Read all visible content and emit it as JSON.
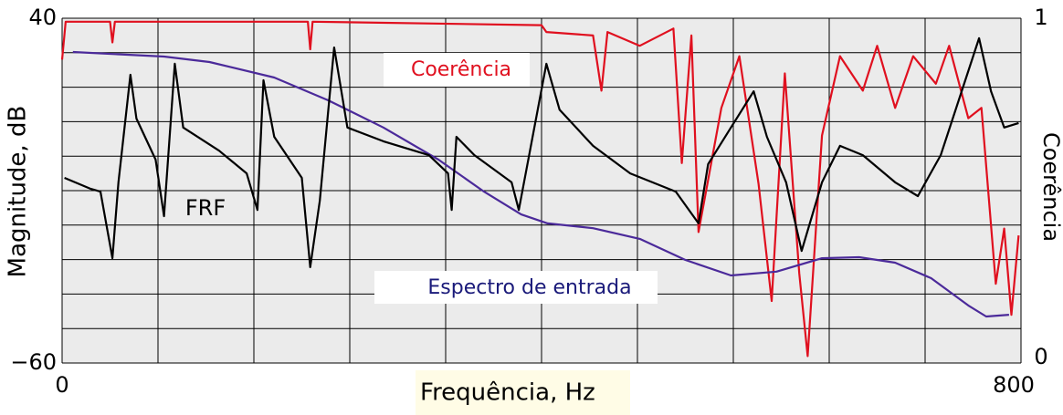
{
  "chart_data": {
    "type": "line",
    "xlabel": "Frequência, Hz",
    "ylabel": "Magnitude, dB",
    "y2label": "Coerência",
    "xlim": [
      0,
      800
    ],
    "ylim": [
      -60,
      40
    ],
    "y2lim": [
      0,
      1
    ],
    "xticks": [
      0,
      800
    ],
    "yticks": [
      40,
      {
        "value": -60,
        "label": "−60"
      }
    ],
    "y2ticks": [
      1,
      0
    ],
    "xgrid": [
      0,
      80,
      160,
      240,
      320,
      400,
      480,
      560,
      640,
      720,
      800
    ],
    "ygrid": [
      -60,
      -50,
      -40,
      -30,
      -20,
      -10,
      0,
      10,
      20,
      30,
      40
    ],
    "grid": true,
    "series": [
      {
        "name": "FRF",
        "color": "#000000",
        "x": [
          2,
          24,
          32,
          42,
          47,
          57,
          62,
          78,
          85,
          94,
          101,
          131,
          154,
          163,
          168,
          177,
          200,
          207,
          215,
          227,
          238,
          268,
          306,
          322,
          325,
          329,
          344,
          375,
          381,
          404,
          415,
          443,
          474,
          512,
          531,
          539,
          558,
          577,
          588,
          604,
          617,
          634,
          649,
          668,
          695,
          714,
          733,
          748,
          765,
          775,
          786,
          798
        ],
        "values": [
          -6.3,
          -9.5,
          -10.3,
          -29.6,
          -7.6,
          23.6,
          10.9,
          -1,
          -17.4,
          26.8,
          8.3,
          1.6,
          -5,
          -15.6,
          22,
          5.6,
          -6.3,
          -32.2,
          -12.9,
          31.5,
          8.3,
          4.3,
          0.3,
          -5,
          -15.6,
          5.6,
          0.3,
          -7.6,
          -15.6,
          26.8,
          13.5,
          3,
          -5,
          -10.3,
          -19.5,
          -2.3,
          8.3,
          18.8,
          5.6,
          -7.6,
          -27.5,
          -7.6,
          3,
          0.3,
          -7.6,
          -11.6,
          0.3,
          16.2,
          34.2,
          18.8,
          8.3,
          9.6
        ]
      },
      {
        "name": "Coerência",
        "color": "#e0101f",
        "axis": "y2",
        "x": [
          0,
          3,
          40,
          42,
          44,
          205,
          207,
          209,
          400,
          404,
          443,
          450,
          455,
          482,
          510,
          517,
          525,
          531,
          550,
          565,
          581,
          592,
          603,
          615,
          622,
          634,
          649,
          668,
          680,
          695,
          710,
          729,
          740,
          756,
          767,
          779,
          786,
          792,
          798
        ],
        "values": [
          0.88,
          0.99,
          0.99,
          0.93,
          0.99,
          0.99,
          0.91,
          0.99,
          0.98,
          0.96,
          0.95,
          0.79,
          0.96,
          0.92,
          0.97,
          0.58,
          0.95,
          0.38,
          0.74,
          0.89,
          0.52,
          0.18,
          0.84,
          0.26,
          0.02,
          0.66,
          0.89,
          0.79,
          0.92,
          0.74,
          0.89,
          0.81,
          0.92,
          0.71,
          0.74,
          0.23,
          0.39,
          0.14,
          0.37
        ]
      },
      {
        "name": "Espectro de entrada",
        "color": "#4b2a9a",
        "x": [
          9,
          85,
          123,
          177,
          222,
          268,
          314,
          352,
          383,
          405,
          443,
          482,
          520,
          558,
          596,
          634,
          665,
          695,
          725,
          756,
          771,
          790
        ],
        "values": [
          30.2,
          28.9,
          27.3,
          22.8,
          16.2,
          8.3,
          -1,
          -10.3,
          -16.9,
          -19.5,
          -20.9,
          -24,
          -30.1,
          -34.6,
          -33.5,
          -29.6,
          -29.3,
          -30.9,
          -35.4,
          -43.3,
          -46.5,
          -46
        ]
      }
    ]
  }
}
